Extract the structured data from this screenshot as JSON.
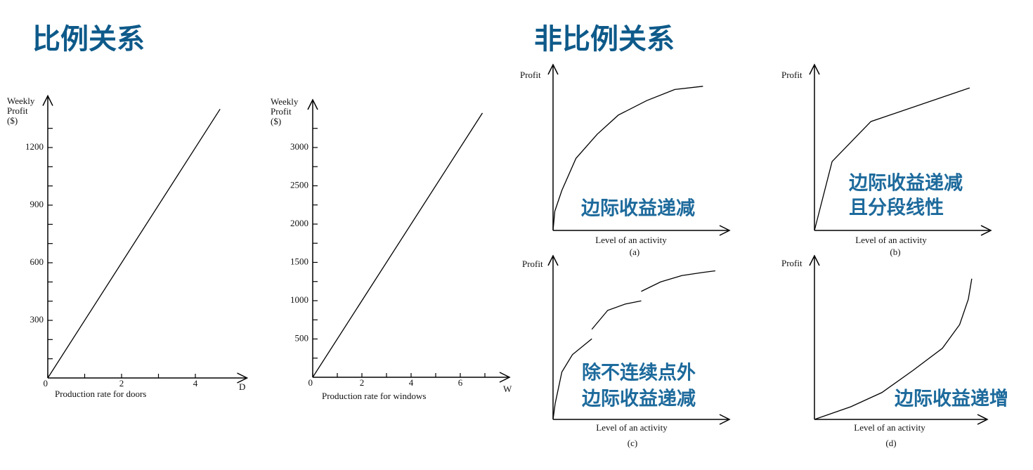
{
  "headings": {
    "left": "比例关系",
    "right": "非比例关系"
  },
  "chart_data": [
    {
      "type": "line",
      "y_label": [
        "Weekly",
        "Profit",
        "($)"
      ],
      "x_label": "Production rate for doors",
      "x_axis_name": "D",
      "x": [
        0,
        4.67
      ],
      "values": [
        0,
        1400
      ],
      "color": "#000000",
      "xlim": [
        0,
        5.4
      ],
      "ylim": [
        0,
        1440
      ],
      "xticks": [
        0,
        2,
        4
      ],
      "x_minor_ticks": [
        1,
        3
      ],
      "yticks": [
        300,
        600,
        900,
        1200
      ],
      "y_minor_ticks": [
        100,
        200,
        400,
        500,
        700,
        800,
        1000,
        1100,
        1300
      ]
    },
    {
      "type": "line",
      "y_label": [
        "Weekly",
        "Profit",
        "($)"
      ],
      "x_label": "Production rate for windows",
      "x_axis_name": "W",
      "x": [
        0,
        6.9
      ],
      "values": [
        0,
        3450
      ],
      "color": "#000000",
      "xlim": [
        0,
        8
      ],
      "ylim": [
        0,
        3550
      ],
      "xticks": [
        0,
        2,
        4,
        6
      ],
      "x_minor_ticks": [
        1,
        3,
        5,
        7
      ],
      "yticks": [
        500,
        1000,
        1500,
        2000,
        2500,
        3000
      ],
      "y_minor_ticks": [
        250,
        750,
        1250,
        1750,
        2250,
        2750,
        3250
      ]
    },
    {
      "type": "line",
      "y_label": [
        "Profit"
      ],
      "x_label": "Level of an activity",
      "caption": "(a)",
      "annotations": [
        "边际收益递减"
      ],
      "x": [
        0,
        0.1,
        0.5,
        1.3,
        2.5,
        3.7,
        5.3,
        6.9,
        8.5
      ],
      "values": [
        0,
        1.2,
        2.5,
        4.5,
        6,
        7.2,
        8.1,
        8.8,
        9
      ],
      "color": "#000000",
      "xlim": [
        0,
        10
      ],
      "ylim": [
        0,
        10
      ]
    },
    {
      "type": "line",
      "y_label": [
        "Profit"
      ],
      "x_label": "Level of an activity",
      "caption": "(b)",
      "annotations": [
        "边际收益递减",
        "且分段线性"
      ],
      "x": [
        0,
        1,
        3.2,
        8.8
      ],
      "values": [
        0,
        4.3,
        6.8,
        8.9
      ],
      "color": "#000000",
      "xlim": [
        0,
        10
      ],
      "ylim": [
        0,
        10
      ]
    },
    {
      "type": "line",
      "y_label": [
        "Profit"
      ],
      "x_label": "Level of an activity",
      "caption": "(c)",
      "annotations": [
        "除不连续点外",
        "边际收益递减"
      ],
      "x": [
        0,
        0.12,
        0.5,
        1.1,
        2.2,
        null,
        2.2,
        3.1,
        4.1,
        5,
        null,
        5,
        6.1,
        7.3,
        8.5,
        9.2
      ],
      "values": [
        0,
        1,
        3,
        4.1,
        5.1,
        null,
        5.7,
        6.9,
        7.3,
        7.5,
        null,
        8.1,
        8.7,
        9.1,
        9.3,
        9.4
      ],
      "color": "#000000",
      "xlim": [
        0,
        10
      ],
      "ylim": [
        0,
        10
      ]
    },
    {
      "type": "line",
      "y_label": [
        "Profit"
      ],
      "x_label": "Level of an activity",
      "caption": "(d)",
      "annotations": [
        "边际收益递增"
      ],
      "x": [
        0,
        2.1,
        3.9,
        5.7,
        7.4,
        8.4,
        8.9,
        9.1
      ],
      "values": [
        0,
        0.8,
        1.7,
        3.1,
        4.5,
        6,
        7.6,
        8.9
      ],
      "color": "#000000",
      "xlim": [
        0,
        10
      ],
      "ylim": [
        0,
        10
      ]
    }
  ]
}
